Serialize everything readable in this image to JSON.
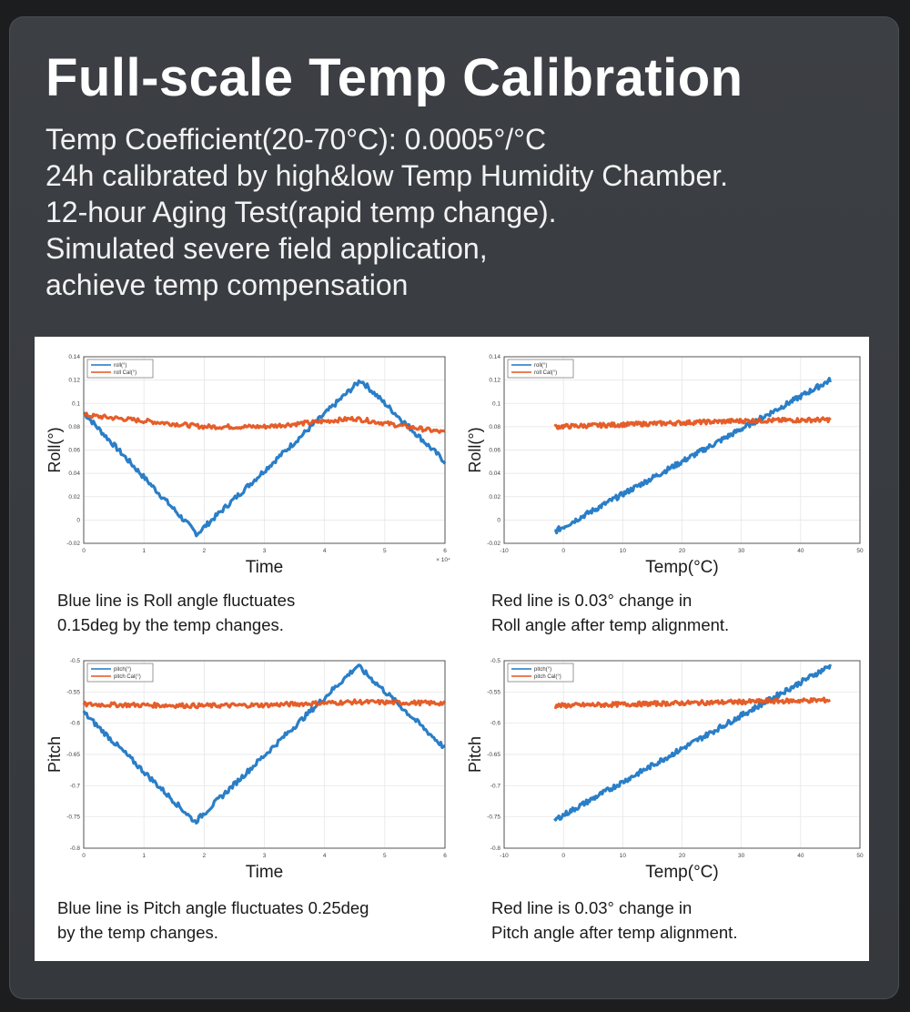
{
  "header": {
    "title": "Full-scale Temp Calibration",
    "lines": [
      "Temp Coefficient(20-70°C): 0.0005°/°C",
      "24h calibrated by high&low Temp Humidity Chamber.",
      "12-hour Aging Test(rapid temp change).",
      "Simulated severe field application,",
      "achieve temp compensation"
    ]
  },
  "colors": {
    "blue": "#1f77c4",
    "orange": "#e4551f",
    "card": "#3a3d42",
    "panel": "#ffffff"
  },
  "chart_data": [
    {
      "type": "line",
      "xlabel": "Time",
      "ylabel": "Roll(°)",
      "xlim": [
        0,
        6
      ],
      "ylim": [
        -0.02,
        0.14
      ],
      "xticks": [
        "0",
        "1",
        "2",
        "3",
        "4",
        "5",
        "6"
      ],
      "yticks": [
        "-0.02",
        "0",
        "0.02",
        "0.04",
        "0.06",
        "0.08",
        "0.1",
        "0.12",
        "0.14"
      ],
      "x_multiplier": "× 10⁴",
      "grid": true,
      "legend": "top-left",
      "series": [
        {
          "name": "roll(°)",
          "color": "#1f77c4",
          "x": [
            0,
            1.88,
            4.6,
            6
          ],
          "y": [
            0.092,
            -0.012,
            0.12,
            0.05
          ]
        },
        {
          "name": "roll Cal(°)",
          "color": "#e4551f",
          "x": [
            0,
            2,
            3,
            4.5,
            6
          ],
          "y": [
            0.09,
            0.08,
            0.08,
            0.087,
            0.075
          ]
        }
      ],
      "caption": [
        "Blue line is Roll angle fluctuates",
        "0.15deg by the temp changes."
      ]
    },
    {
      "type": "line",
      "xlabel": "Temp(°C)",
      "ylabel": "Roll(°)",
      "xlim": [
        -10,
        50
      ],
      "ylim": [
        -0.02,
        0.14
      ],
      "xticks": [
        "-10",
        "0",
        "10",
        "20",
        "30",
        "40",
        "50"
      ],
      "yticks": [
        "-0.02",
        "0",
        "0.02",
        "0.04",
        "0.06",
        "0.08",
        "0.1",
        "0.12",
        "0.14"
      ],
      "grid": true,
      "legend": "top-left",
      "series": [
        {
          "name": "roll(°)",
          "color": "#1f77c4",
          "x": [
            -1.5,
            45
          ],
          "y": [
            -0.01,
            0.12
          ]
        },
        {
          "name": "roll Cal(°)",
          "color": "#e4551f",
          "x": [
            -1.5,
            30,
            45
          ],
          "y": [
            0.08,
            0.085,
            0.086
          ]
        }
      ],
      "caption": [
        "Red line is 0.03° change in",
        "Roll angle after temp alignment."
      ]
    },
    {
      "type": "line",
      "xlabel": "Time",
      "ylabel": "Pitch",
      "xlim": [
        0,
        6
      ],
      "ylim": [
        -0.8,
        -0.5
      ],
      "xticks": [
        "0",
        "1",
        "2",
        "3",
        "4",
        "5",
        "6"
      ],
      "yticks": [
        "-0.8",
        "-0.75",
        "-0.7",
        "-0.65",
        "-0.6",
        "-0.55",
        "-0.5"
      ],
      "grid": true,
      "legend": "top-left",
      "series": [
        {
          "name": "pitch(°)",
          "color": "#1f77c4",
          "x": [
            0,
            1.85,
            4.55,
            6
          ],
          "y": [
            -0.583,
            -0.758,
            -0.508,
            -0.64
          ]
        },
        {
          "name": "pitch Cal(°)",
          "color": "#e4551f",
          "x": [
            0,
            2,
            3,
            4.5,
            6
          ],
          "y": [
            -0.57,
            -0.572,
            -0.571,
            -0.566,
            -0.568
          ]
        }
      ],
      "caption": [
        "Blue line is Pitch angle fluctuates 0.25deg",
        "by the temp changes."
      ]
    },
    {
      "type": "line",
      "xlabel": "Temp(°C)",
      "ylabel": "Pitch",
      "xlim": [
        -10,
        50
      ],
      "ylim": [
        -0.8,
        -0.5
      ],
      "xticks": [
        "-10",
        "0",
        "10",
        "20",
        "30",
        "40",
        "50"
      ],
      "yticks": [
        "-0.8",
        "-0.75",
        "-0.7",
        "-0.65",
        "-0.6",
        "-0.55",
        "-0.5"
      ],
      "grid": true,
      "legend": "top-left",
      "series": [
        {
          "name": "pitch(°)",
          "color": "#1f77c4",
          "x": [
            -1.5,
            45
          ],
          "y": [
            -0.755,
            -0.508
          ]
        },
        {
          "name": "pitch Cal(°)",
          "color": "#e4551f",
          "x": [
            -1.5,
            45
          ],
          "y": [
            -0.572,
            -0.563
          ]
        }
      ],
      "caption": [
        "Red line is 0.03° change in",
        "Pitch angle after temp alignment."
      ]
    }
  ]
}
